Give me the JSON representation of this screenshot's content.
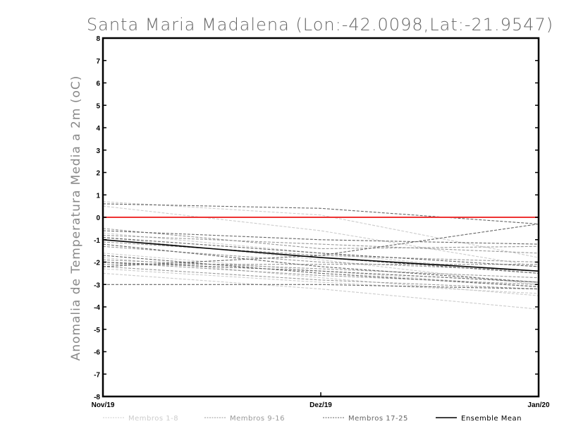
{
  "chart_data": {
    "type": "line",
    "title": "Santa Maria Madalena (Lon:-42.0098,Lat:-21.9547)",
    "ylabel": "Anomalia de Temperatura Media a 2m (oC)",
    "xlabel": "",
    "categories": [
      "Nov/19",
      "Dez/19",
      "Jan/20"
    ],
    "ylim": [
      -8,
      8
    ],
    "yticks": [
      "-8",
      "-7",
      "-6",
      "-5",
      "-4",
      "-3",
      "-2",
      "-1",
      "0",
      "1",
      "2",
      "3",
      "4",
      "5",
      "6",
      "7",
      "8"
    ],
    "reference_line": {
      "y": 0,
      "color": "#ee3333"
    },
    "groups": [
      {
        "name": "Membros 1-8",
        "color": "#cccccc",
        "dash": "dashed",
        "series": [
          {
            "values": [
              0.7,
              0.1,
              -1.8
            ]
          },
          {
            "values": [
              0.5,
              -0.6,
              -2.2
            ]
          },
          {
            "values": [
              -0.7,
              -1.6,
              -2.5
            ]
          },
          {
            "values": [
              -1.6,
              -2.4,
              -3.1
            ]
          },
          {
            "values": [
              -1.8,
              -2.7,
              -3.5
            ]
          },
          {
            "values": [
              -2.3,
              -2.9,
              -3.4
            ]
          },
          {
            "values": [
              -2.5,
              -3.2,
              -4.1
            ]
          },
          {
            "values": [
              -0.9,
              -1.9,
              -3.0
            ]
          }
        ]
      },
      {
        "name": "Membros 9-16",
        "color": "#999999",
        "dash": "dashed",
        "series": [
          {
            "values": [
              -0.5,
              -1.4,
              -1.3
            ]
          },
          {
            "values": [
              -0.8,
              -1.2,
              -1.6
            ]
          },
          {
            "values": [
              -1.1,
              -1.7,
              -2.0
            ]
          },
          {
            "values": [
              -1.3,
              -2.0,
              -2.4
            ]
          },
          {
            "values": [
              -1.9,
              -2.3,
              -2.7
            ]
          },
          {
            "values": [
              -2.0,
              -2.6,
              -3.0
            ]
          },
          {
            "values": [
              -2.1,
              -2.1,
              -2.1
            ]
          },
          {
            "values": [
              -2.2,
              -2.8,
              -3.2
            ]
          }
        ]
      },
      {
        "name": "Membros 17-25",
        "color": "#666666",
        "dash": "dashed",
        "series": [
          {
            "values": [
              0.6,
              0.4,
              -0.3
            ]
          },
          {
            "values": [
              -0.6,
              -1.0,
              -1.2
            ]
          },
          {
            "values": [
              -0.9,
              -1.6,
              -2.2
            ]
          },
          {
            "values": [
              -1.0,
              -1.8,
              -2.5
            ]
          },
          {
            "values": [
              -1.2,
              -2.2,
              -2.9
            ]
          },
          {
            "values": [
              -1.7,
              -2.5,
              -3.1
            ]
          },
          {
            "values": [
              -2.0,
              -2.4,
              -2.9
            ]
          },
          {
            "values": [
              -2.2,
              -1.7,
              -0.3
            ]
          },
          {
            "values": [
              -3.0,
              -3.0,
              -3.2
            ]
          }
        ]
      },
      {
        "name": "Ensemble Mean",
        "color": "#000000",
        "dash": "solid",
        "series": [
          {
            "values": [
              -1.0,
              -1.8,
              -2.4
            ]
          }
        ]
      }
    ],
    "legend": [
      {
        "label": "Membros 1-8",
        "color": "#cccccc",
        "dash": "dashed"
      },
      {
        "label": "Membros 9-16",
        "color": "#999999",
        "dash": "dashed"
      },
      {
        "label": "Membros 17-25",
        "color": "#666666",
        "dash": "dashed"
      },
      {
        "label": "Ensemble Mean",
        "color": "#000000",
        "dash": "solid"
      }
    ]
  }
}
